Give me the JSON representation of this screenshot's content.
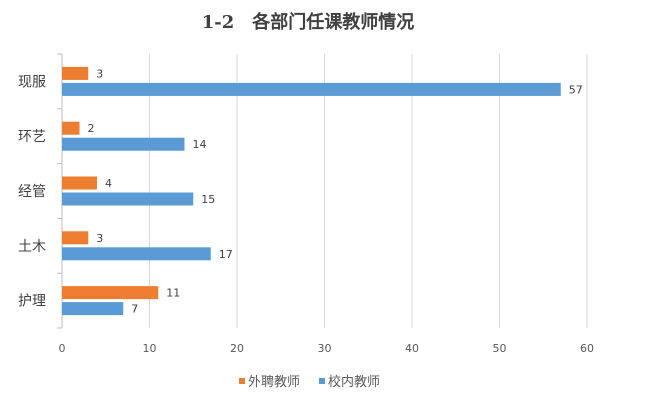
{
  "chart_data": {
    "type": "bar",
    "orientation": "horizontal",
    "title": "1-2　各部门任课教师情况",
    "categories": [
      "现服",
      "环艺",
      "经管",
      "土木",
      "护理"
    ],
    "series": [
      {
        "name": "外聘教师",
        "color": "#ED7D31",
        "values": [
          3,
          2,
          4,
          3,
          11
        ]
      },
      {
        "name": "校内教师",
        "color": "#5B9BD5",
        "values": [
          57,
          14,
          15,
          17,
          7
        ]
      }
    ],
    "xlim": [
      0,
      60
    ],
    "xticks": [
      0,
      10,
      20,
      30,
      40,
      50,
      60
    ],
    "grid": true,
    "legend_position": "bottom"
  }
}
